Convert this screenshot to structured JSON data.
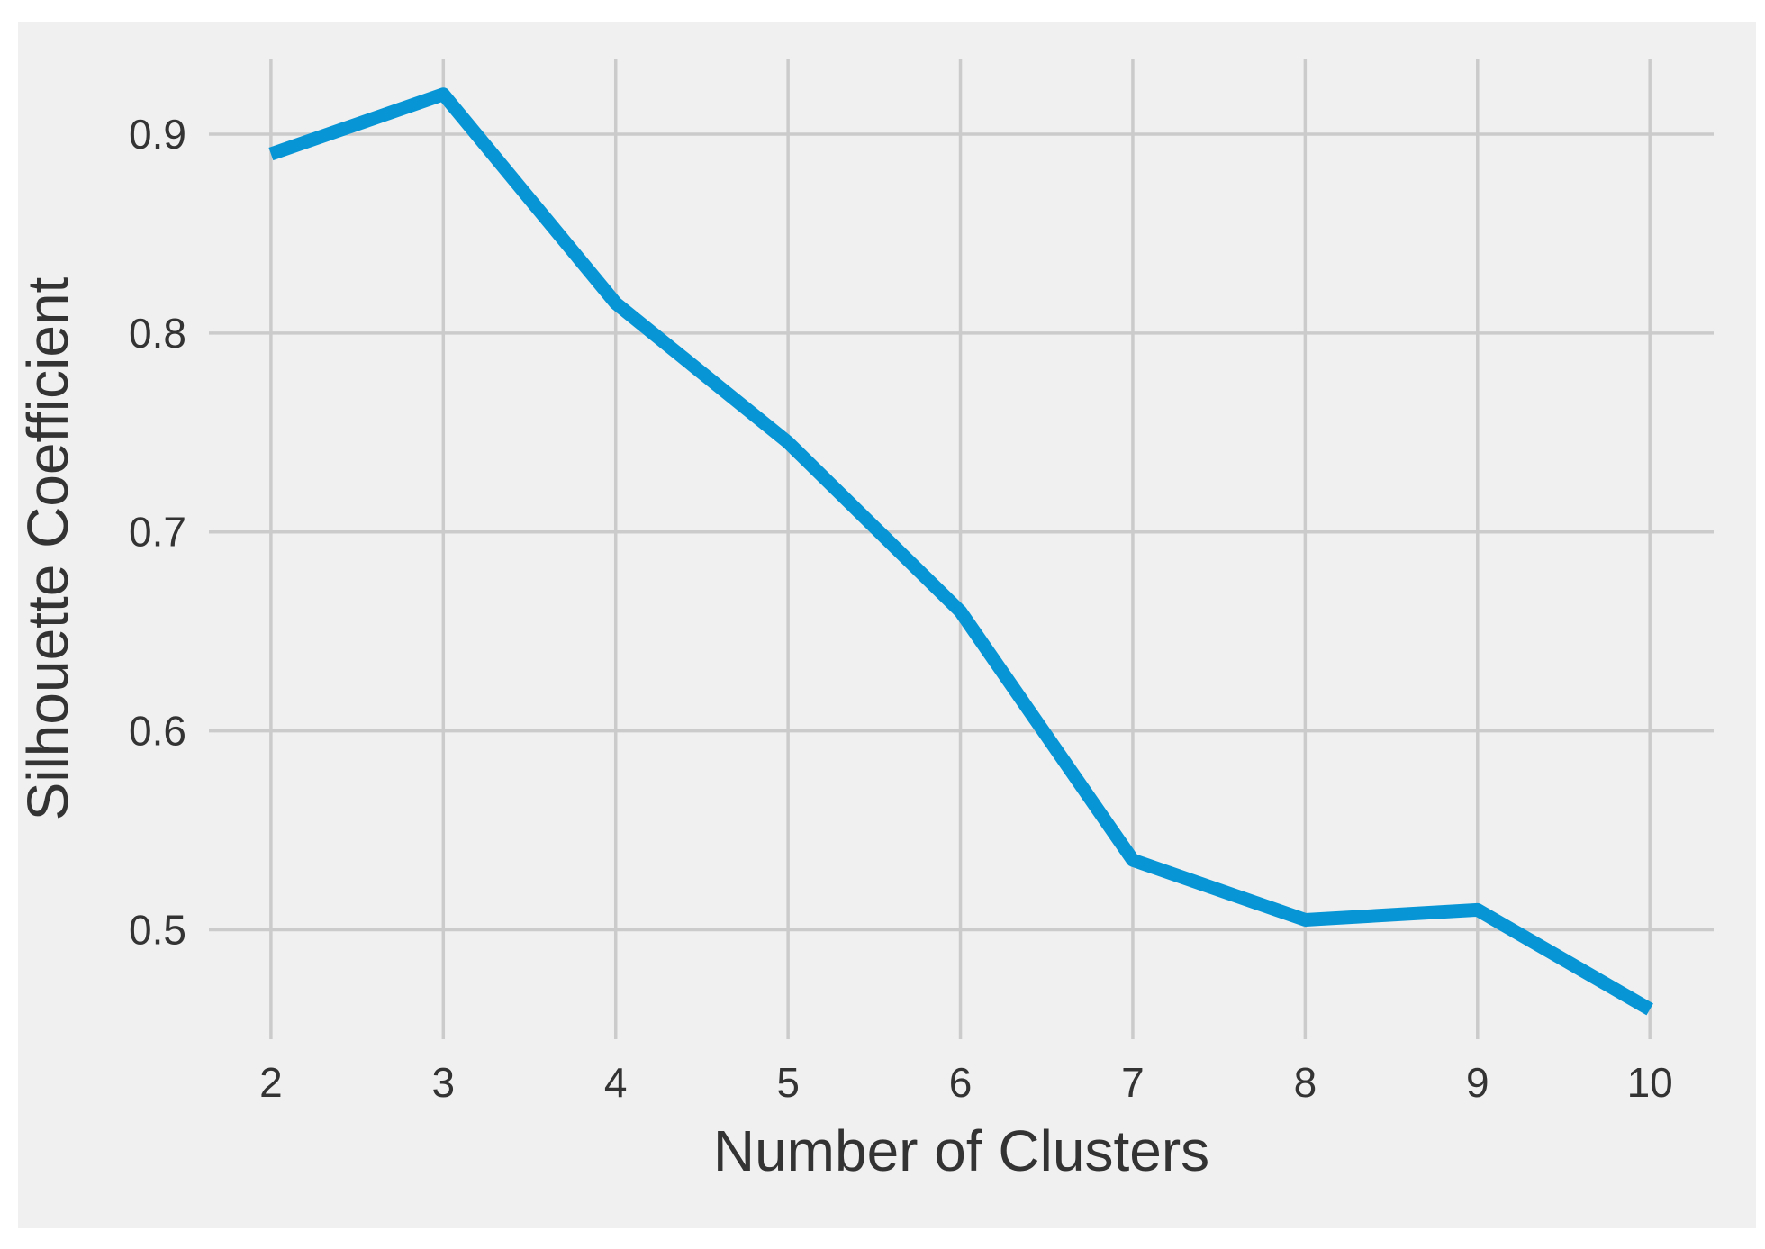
{
  "chart_data": {
    "type": "line",
    "title": "",
    "xlabel": "Number of Clusters",
    "ylabel": "Silhouette Coefficient",
    "x": [
      2,
      3,
      4,
      5,
      6,
      7,
      8,
      9,
      10
    ],
    "series": [
      {
        "name": "silhouette-coefficient",
        "values": [
          0.89,
          0.92,
          0.815,
          0.745,
          0.66,
          0.535,
          0.505,
          0.51,
          0.46
        ]
      }
    ],
    "x_tick_labels": [
      "2",
      "3",
      "4",
      "5",
      "6",
      "7",
      "8",
      "9",
      "10"
    ],
    "y_tick_labels": [
      "0.5",
      "0.6",
      "0.7",
      "0.8",
      "0.9"
    ],
    "y_tick_values": [
      0.5,
      0.6,
      0.7,
      0.8,
      0.9
    ],
    "xlim": [
      1.64,
      10.37
    ],
    "ylim": [
      0.445,
      0.938
    ],
    "grid": true,
    "legend_position": "none",
    "line_color": "#0795d5",
    "background_color": "#f0f0f0",
    "page_color": "#ffffff",
    "grid_color": "#cbcbcb",
    "text_color": "#333333"
  }
}
